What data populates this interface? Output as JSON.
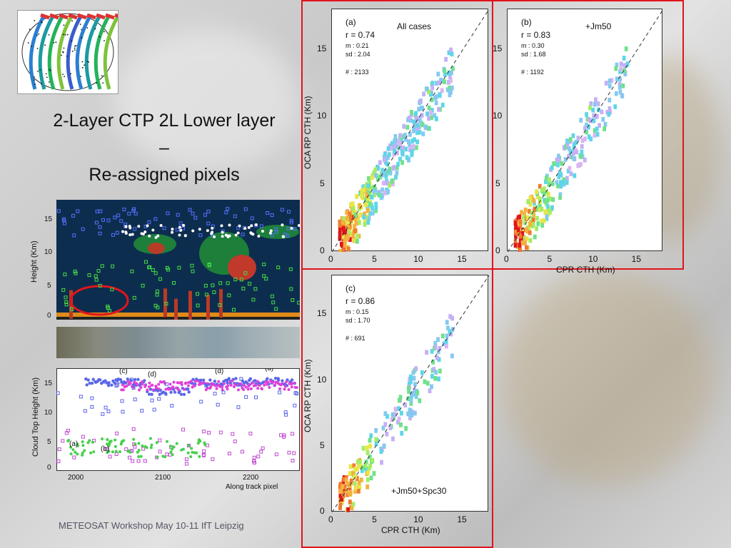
{
  "slide": {
    "title_line1": "2-Layer CTP 2L Lower layer",
    "title_line2": "–",
    "title_line3": "Re-assigned pixels",
    "footer": "METEOSAT Workshop May 10-11 IfT Leipzig"
  },
  "curtain": {
    "ylabel": "Height (Km)",
    "yticks": [
      "15",
      "10",
      "5",
      "0"
    ]
  },
  "lower_plot": {
    "ylabel": "Cloud Top Height (Km)",
    "xlabel": "Along track pixel",
    "yticks": [
      "15",
      "10",
      "5",
      "0"
    ],
    "xticks": [
      "2000",
      "2100",
      "2200"
    ],
    "annotations": [
      "(a)",
      "(b)",
      "(c)",
      "(d)",
      "(d)",
      "(d)"
    ]
  },
  "chart_data": [
    {
      "type": "heatmap",
      "panel": "(a)",
      "subtitle": "All cases",
      "r": "r = 0.74",
      "m_label": "m :",
      "m": "0.21",
      "sd_label": "sd :",
      "sd": "2.04",
      "n": "# : 2133",
      "xlabel": "",
      "ylabel": "OCA RP CTH (Km)",
      "xlim": [
        0,
        18
      ],
      "ylim": [
        0,
        18
      ],
      "xticks": [
        "0",
        "5",
        "10",
        "15"
      ],
      "yticks": [
        "0",
        "5",
        "10",
        "15"
      ]
    },
    {
      "type": "heatmap",
      "panel": "(b)",
      "subtitle": "+Jm50",
      "r": "r = 0.83",
      "m_label": "m :",
      "m": "0.30",
      "sd_label": "sd :",
      "sd": "1.68",
      "n": "# : 1192",
      "xlabel": "CPR CTH (Km)",
      "ylabel": "",
      "xlim": [
        0,
        18
      ],
      "ylim": [
        0,
        18
      ],
      "xticks": [
        "0",
        "5",
        "10",
        "15"
      ],
      "yticks": [
        "0",
        "5",
        "10",
        "15"
      ]
    },
    {
      "type": "heatmap",
      "panel": "(c)",
      "subtitle": "+Jm50+Spc30",
      "r": "r = 0.86",
      "m_label": "m :",
      "m": "0.15",
      "sd_label": "sd :",
      "sd": "1.70",
      "n": "# : 691",
      "xlabel": "CPR CTH (Km)",
      "ylabel": "OCA RP CTH (Km)",
      "xlim": [
        0,
        18
      ],
      "ylim": [
        0,
        18
      ],
      "xticks": [
        "0",
        "5",
        "10",
        "15"
      ],
      "yticks": [
        "0",
        "5",
        "10",
        "15"
      ]
    }
  ]
}
